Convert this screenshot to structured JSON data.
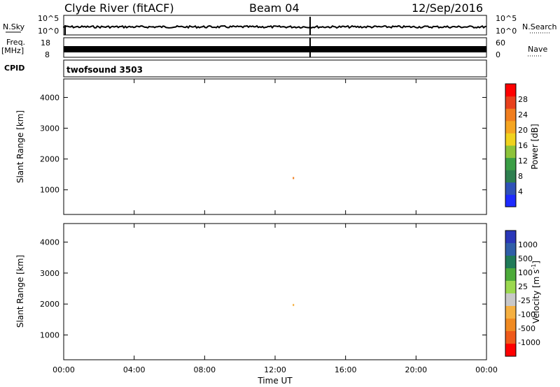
{
  "header": {
    "station": "Clyde River (fitACF)",
    "beam": "Beam 04",
    "date": "12/Sep/2016"
  },
  "strips": {
    "nsky_label": "N.Sky",
    "nsky_ticks": [
      "10^5",
      "10^0"
    ],
    "nsearch_label": "N.Search",
    "nsearch_ticks": [
      "10^5",
      "10^0"
    ],
    "freq_label": "Freq.",
    "freq_unit": "[MHz]",
    "freq_ticks": [
      "18",
      "8"
    ],
    "nave_label": "Nave",
    "nave_ticks": [
      "60",
      "0"
    ],
    "cpid_label": "CPID",
    "cpid_value": "twofsound 3503"
  },
  "colors": {
    "power": [
      "#1e2bff",
      "#2f52b8",
      "#2e7f4f",
      "#3a9e45",
      "#8dc33a",
      "#f0d21e",
      "#f5a521",
      "#f07e1f",
      "#e8401c",
      "#ff0000"
    ],
    "velocity": [
      "#2a37b8",
      "#2f5ea8",
      "#1f7a58",
      "#4caa3a",
      "#9bd84f",
      "#c8c8c8",
      "#f5b041",
      "#f08a22",
      "#ef5a1a",
      "#ff0000"
    ]
  },
  "chart_data": [
    {
      "type": "heatmap",
      "quantity": "power",
      "ylabel": "Slant Range [km]",
      "yticks": [
        "1000",
        "2000",
        "3000",
        "4000"
      ],
      "ylim": [
        200,
        4600
      ],
      "colorbar_label": "Power [dB]",
      "colorbar_ticks": [
        "4",
        "8",
        "12",
        "16",
        "20",
        "24",
        "28"
      ],
      "clim": [
        0,
        32
      ]
    },
    {
      "type": "heatmap",
      "quantity": "velocity",
      "ylabel": "Slant Range [km]",
      "yticks": [
        "1000",
        "2000",
        "3000",
        "4000"
      ],
      "ylim": [
        200,
        4600
      ],
      "xlabel": "Time UT",
      "xticks": [
        "00:00",
        "04:00",
        "08:00",
        "12:00",
        "16:00",
        "20:00",
        "00:00"
      ],
      "colorbar_label_main": "Velocity",
      "colorbar_label_unit": "[m s",
      "colorbar_label_sup": "-1",
      "colorbar_label_close": "]",
      "colorbar_ticks": [
        "1000",
        "500",
        "100",
        "25",
        "-25",
        "-100",
        "-500",
        "-1000"
      ]
    }
  ]
}
